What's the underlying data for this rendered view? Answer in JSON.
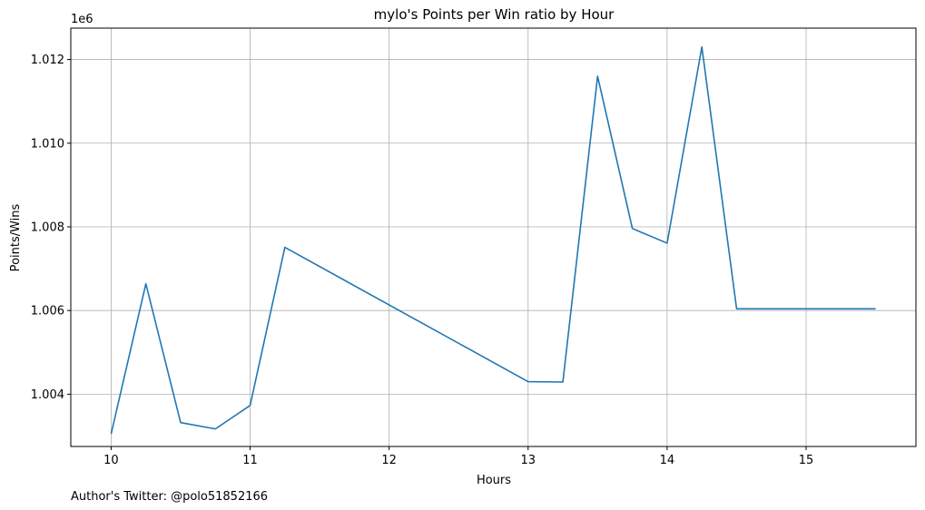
{
  "chart_data": {
    "type": "line",
    "title": "mylo's Points per Win ratio by Hour",
    "xlabel": "Hours",
    "ylabel": "Points/Wins",
    "y_offset_label": "1e6",
    "xlim": [
      9.71,
      15.79
    ],
    "ylim": [
      1.00275,
      1.01275
    ],
    "x_ticks": [
      10,
      11,
      12,
      13,
      14,
      15
    ],
    "y_ticks": [
      1.004,
      1.006,
      1.008,
      1.01,
      1.012
    ],
    "x_tick_labels": [
      "10",
      "11",
      "12",
      "13",
      "14",
      "15"
    ],
    "y_tick_labels": [
      "1.004",
      "1.006",
      "1.008",
      "1.010",
      "1.012"
    ],
    "grid": true,
    "series": [
      {
        "color": "#1f77b4",
        "x": [
          10.0,
          10.25,
          10.5,
          10.75,
          11.0,
          11.25,
          13.0,
          13.25,
          13.5,
          13.75,
          14.0,
          14.25,
          14.5,
          14.75,
          15.0,
          15.25,
          15.5
        ],
        "y": [
          1.00305,
          1.00664,
          1.00332,
          1.00317,
          1.00373,
          1.00751,
          1.0043,
          1.00429,
          1.0116,
          1.00796,
          1.00761,
          1.0123,
          1.00604,
          1.00604,
          1.00604,
          1.00604,
          1.00604
        ]
      }
    ]
  },
  "footer": {
    "author": "Author's Twitter: @polo51852166"
  }
}
